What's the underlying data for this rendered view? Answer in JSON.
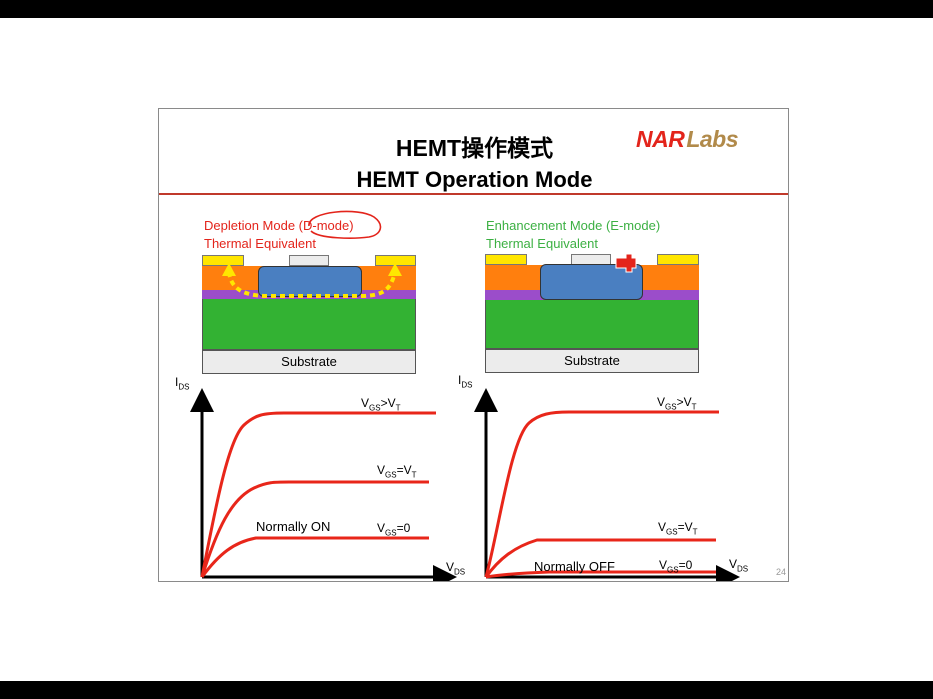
{
  "slide": {
    "title_line1": "HEMT操作模式",
    "title_line2": "HEMT Operation Mode",
    "logo_nar": "NAR",
    "logo_labs": "Labs",
    "page_number": "24"
  },
  "left_panel": {
    "caption_line1": "Depletion Mode (D-mode)",
    "caption_line2": "Thermal Equivalent",
    "substrate_label": "Substrate",
    "y_axis_label": "I",
    "y_axis_sub": "DS",
    "x_axis_label": "V",
    "x_axis_sub": "DS",
    "curve_labels": [
      {
        "main": "V",
        "sub": "GS",
        "rest": ">V",
        "sub2": "T"
      },
      {
        "main": "V",
        "sub": "GS",
        "rest": "=V",
        "sub2": "T"
      },
      {
        "main": "V",
        "sub": "GS",
        "rest": "=0",
        "sub2": ""
      }
    ],
    "mode_label": "Normally ON"
  },
  "right_panel": {
    "caption_line1": "Enhancement Mode (E-mode)",
    "caption_line2": "Thermal Equivalent",
    "substrate_label": "Substrate",
    "y_axis_label": "I",
    "y_axis_sub": "DS",
    "x_axis_label": "V",
    "x_axis_sub": "DS",
    "curve_labels": [
      {
        "main": "V",
        "sub": "GS",
        "rest": ">V",
        "sub2": "T"
      },
      {
        "main": "V",
        "sub": "GS",
        "rest": "=V",
        "sub2": "T"
      },
      {
        "main": "V",
        "sub": "GS",
        "rest": "=0",
        "sub2": ""
      }
    ],
    "mode_label": "Normally OFF"
  },
  "colors": {
    "curve": "#e8261a",
    "accent_red": "#e3241b",
    "accent_green": "#3cb043",
    "logo_gold": "#b18a4a"
  }
}
